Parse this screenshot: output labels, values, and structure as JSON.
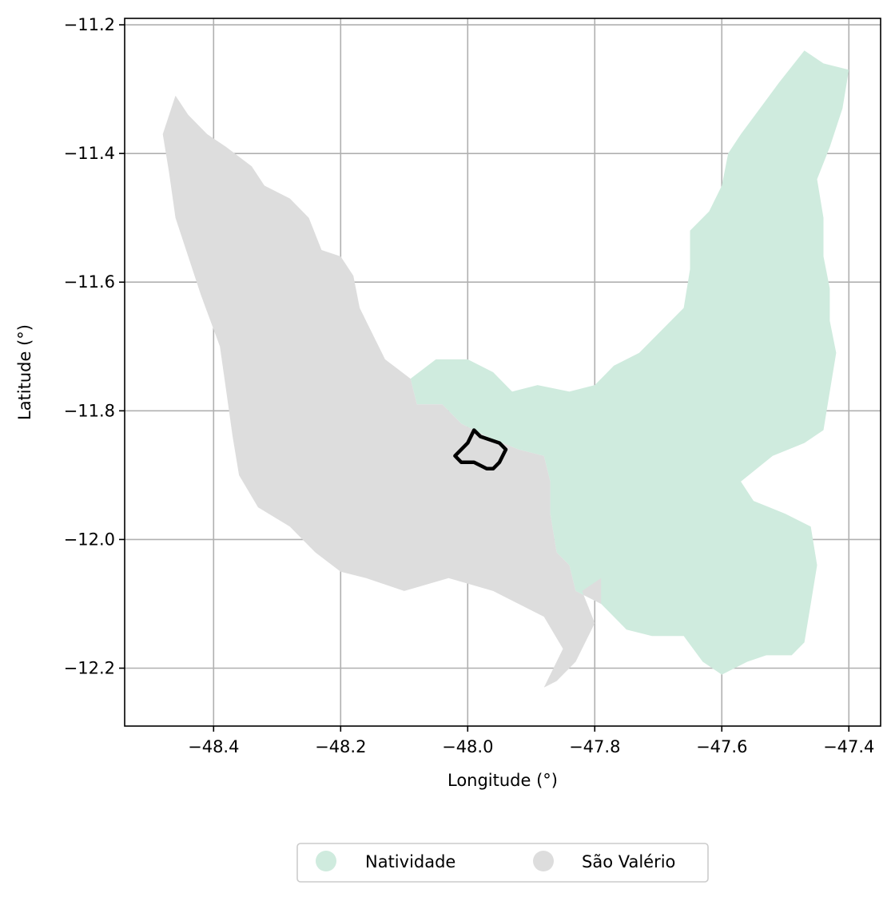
{
  "chart_data": {
    "type": "map",
    "xlabel": "Longitude (°)",
    "ylabel": "Latitude (°)",
    "xlim": [
      -48.54,
      -47.35
    ],
    "ylim": [
      -12.29,
      -11.19
    ],
    "grid": true,
    "legend_position": "bottom-center",
    "x_ticks": [
      {
        "value": -48.4,
        "label": "−48.4"
      },
      {
        "value": -48.2,
        "label": "−48.2"
      },
      {
        "value": -48.0,
        "label": "−48.0"
      },
      {
        "value": -47.8,
        "label": "−47.8"
      },
      {
        "value": -47.6,
        "label": "−47.6"
      },
      {
        "value": -47.4,
        "label": "−47.4"
      }
    ],
    "y_ticks": [
      {
        "value": -11.2,
        "label": "−11.2"
      },
      {
        "value": -11.4,
        "label": "−11.4"
      },
      {
        "value": -11.6,
        "label": "−11.6"
      },
      {
        "value": -11.8,
        "label": "−11.8"
      },
      {
        "value": -12.0,
        "label": "−12.0"
      },
      {
        "value": -12.2,
        "label": "−12.2"
      }
    ],
    "regions": [
      {
        "name": "Natividade",
        "color": "#cfebde",
        "outline": [
          [
            -48.09,
            -11.75
          ],
          [
            -48.05,
            -11.72
          ],
          [
            -48.0,
            -11.72
          ],
          [
            -47.96,
            -11.74
          ],
          [
            -47.93,
            -11.77
          ],
          [
            -47.89,
            -11.76
          ],
          [
            -47.84,
            -11.77
          ],
          [
            -47.8,
            -11.76
          ],
          [
            -47.77,
            -11.73
          ],
          [
            -47.73,
            -11.71
          ],
          [
            -47.69,
            -11.67
          ],
          [
            -47.66,
            -11.64
          ],
          [
            -47.65,
            -11.58
          ],
          [
            -47.65,
            -11.52
          ],
          [
            -47.62,
            -11.49
          ],
          [
            -47.6,
            -11.45
          ],
          [
            -47.59,
            -11.4
          ],
          [
            -47.57,
            -11.37
          ],
          [
            -47.54,
            -11.33
          ],
          [
            -47.51,
            -11.29
          ],
          [
            -47.47,
            -11.24
          ],
          [
            -47.44,
            -11.26
          ],
          [
            -47.4,
            -11.27
          ],
          [
            -47.41,
            -11.33
          ],
          [
            -47.43,
            -11.39
          ],
          [
            -47.45,
            -11.44
          ],
          [
            -47.44,
            -11.5
          ],
          [
            -47.44,
            -11.56
          ],
          [
            -47.43,
            -11.61
          ],
          [
            -47.43,
            -11.66
          ],
          [
            -47.42,
            -11.71
          ],
          [
            -47.43,
            -11.77
          ],
          [
            -47.44,
            -11.83
          ],
          [
            -47.47,
            -11.85
          ],
          [
            -47.52,
            -11.87
          ],
          [
            -47.57,
            -11.91
          ],
          [
            -47.55,
            -11.94
          ],
          [
            -47.5,
            -11.96
          ],
          [
            -47.46,
            -11.98
          ],
          [
            -47.45,
            -12.04
          ],
          [
            -47.46,
            -12.1
          ],
          [
            -47.47,
            -12.16
          ],
          [
            -47.49,
            -12.18
          ],
          [
            -47.53,
            -12.18
          ],
          [
            -47.56,
            -12.19
          ],
          [
            -47.6,
            -12.21
          ],
          [
            -47.63,
            -12.19
          ],
          [
            -47.66,
            -12.15
          ],
          [
            -47.71,
            -12.15
          ],
          [
            -47.75,
            -12.14
          ],
          [
            -47.79,
            -12.1
          ],
          [
            -47.83,
            -12.08
          ],
          [
            -47.84,
            -12.04
          ],
          [
            -47.86,
            -12.02
          ],
          [
            -47.87,
            -11.96
          ],
          [
            -47.87,
            -11.91
          ],
          [
            -47.88,
            -11.87
          ],
          [
            -47.92,
            -11.86
          ],
          [
            -47.97,
            -11.84
          ],
          [
            -48.01,
            -11.82
          ],
          [
            -48.04,
            -11.79
          ],
          [
            -48.08,
            -11.79
          ]
        ]
      },
      {
        "name": "São Valério",
        "color": "#dddddd",
        "outline": [
          [
            -48.46,
            -11.31
          ],
          [
            -48.44,
            -11.34
          ],
          [
            -48.41,
            -11.37
          ],
          [
            -48.38,
            -11.39
          ],
          [
            -48.34,
            -11.42
          ],
          [
            -48.32,
            -11.45
          ],
          [
            -48.28,
            -11.47
          ],
          [
            -48.25,
            -11.5
          ],
          [
            -48.23,
            -11.55
          ],
          [
            -48.2,
            -11.56
          ],
          [
            -48.18,
            -11.59
          ],
          [
            -48.17,
            -11.64
          ],
          [
            -48.15,
            -11.68
          ],
          [
            -48.13,
            -11.72
          ],
          [
            -48.09,
            -11.75
          ],
          [
            -48.08,
            -11.79
          ],
          [
            -48.04,
            -11.79
          ],
          [
            -48.01,
            -11.82
          ],
          [
            -47.97,
            -11.84
          ],
          [
            -47.92,
            -11.86
          ],
          [
            -47.88,
            -11.87
          ],
          [
            -47.87,
            -11.91
          ],
          [
            -47.87,
            -11.96
          ],
          [
            -47.86,
            -12.02
          ],
          [
            -47.84,
            -12.04
          ],
          [
            -47.83,
            -12.08
          ],
          [
            -47.79,
            -12.1
          ],
          [
            -47.79,
            -12.06
          ],
          [
            -47.82,
            -12.08
          ],
          [
            -47.8,
            -12.13
          ],
          [
            -47.83,
            -12.19
          ],
          [
            -47.86,
            -12.22
          ],
          [
            -47.88,
            -12.23
          ],
          [
            -47.87,
            -12.21
          ],
          [
            -47.85,
            -12.17
          ],
          [
            -47.88,
            -12.12
          ],
          [
            -47.92,
            -12.1
          ],
          [
            -47.96,
            -12.08
          ],
          [
            -48.03,
            -12.06
          ],
          [
            -48.1,
            -12.08
          ],
          [
            -48.16,
            -12.06
          ],
          [
            -48.2,
            -12.05
          ],
          [
            -48.24,
            -12.02
          ],
          [
            -48.28,
            -11.98
          ],
          [
            -48.33,
            -11.95
          ],
          [
            -48.36,
            -11.9
          ],
          [
            -48.37,
            -11.84
          ],
          [
            -48.38,
            -11.77
          ],
          [
            -48.39,
            -11.7
          ],
          [
            -48.42,
            -11.62
          ],
          [
            -48.44,
            -11.56
          ],
          [
            -48.46,
            -11.5
          ],
          [
            -48.47,
            -11.43
          ],
          [
            -48.48,
            -11.37
          ]
        ]
      }
    ],
    "overlays": [
      {
        "type": "outline",
        "color": "#000000",
        "outline": [
          [
            -47.99,
            -11.83
          ],
          [
            -47.98,
            -11.84
          ],
          [
            -47.95,
            -11.85
          ],
          [
            -47.94,
            -11.86
          ],
          [
            -47.95,
            -11.88
          ],
          [
            -47.96,
            -11.89
          ],
          [
            -47.97,
            -11.89
          ],
          [
            -47.99,
            -11.88
          ],
          [
            -48.01,
            -11.88
          ],
          [
            -48.02,
            -11.87
          ],
          [
            -48.0,
            -11.85
          ]
        ]
      }
    ],
    "legend": [
      {
        "label": "Natividade",
        "color": "#cfebde"
      },
      {
        "label": "São Valério",
        "color": "#dddddd"
      }
    ]
  }
}
